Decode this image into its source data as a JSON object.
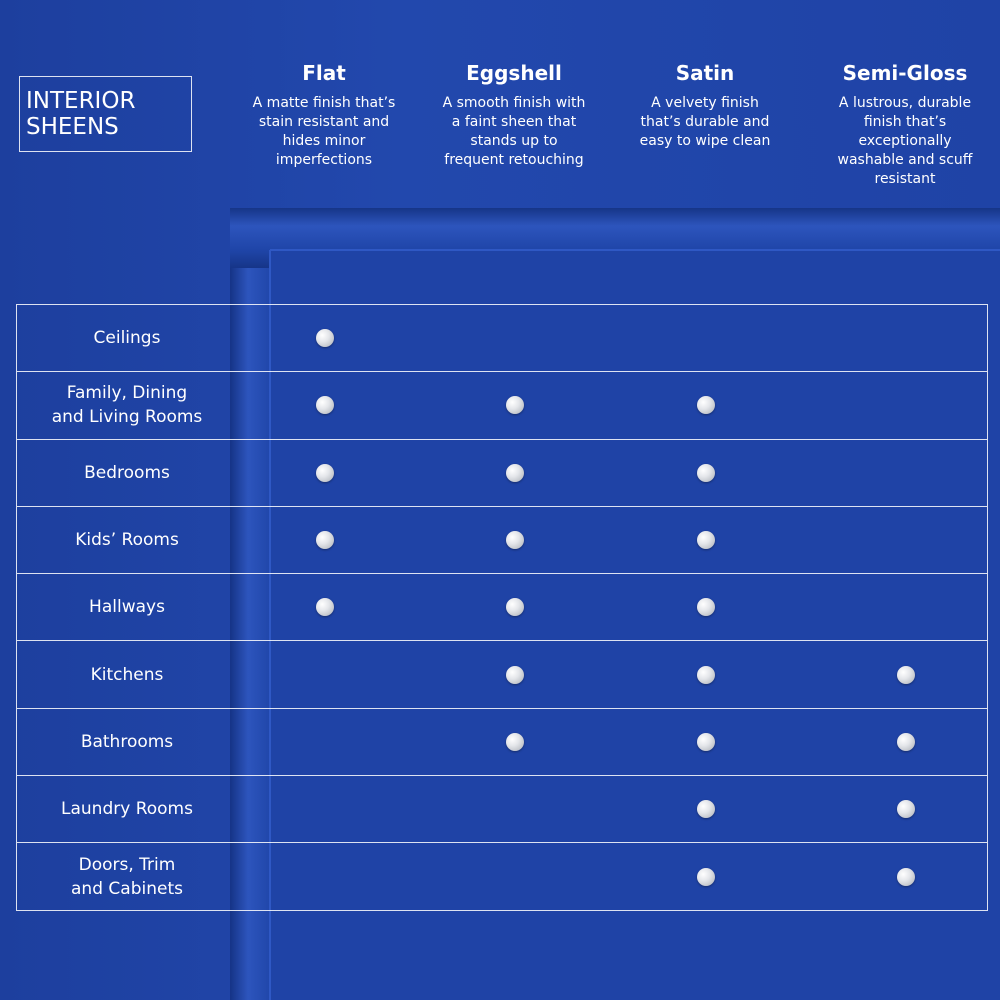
{
  "header": {
    "title": "INTERIOR\nSHEENS"
  },
  "columns": [
    {
      "name": "Flat",
      "description": "A matte finish that’s\nstain resistant and\nhides minor\nimperfections"
    },
    {
      "name": "Eggshell",
      "description": "A smooth finish with\na faint sheen that\nstands up to\nfrequent retouching"
    },
    {
      "name": "Satin",
      "description": "A velvety finish\nthat’s durable and\neasy to wipe clean"
    },
    {
      "name": "Semi-Gloss",
      "description": "A lustrous, durable\nfinish that’s\nexceptionally\nwashable and scuff\nresistant"
    }
  ],
  "rows": [
    {
      "label": "Ceilings",
      "marks": [
        true,
        false,
        false,
        false
      ]
    },
    {
      "label": "Family, Dining\nand Living Rooms",
      "marks": [
        true,
        true,
        true,
        false
      ]
    },
    {
      "label": "Bedrooms",
      "marks": [
        true,
        true,
        true,
        false
      ]
    },
    {
      "label": "Kids’ Rooms",
      "marks": [
        true,
        true,
        true,
        false
      ]
    },
    {
      "label": "Hallways",
      "marks": [
        true,
        true,
        true,
        false
      ]
    },
    {
      "label": "Kitchens",
      "marks": [
        false,
        true,
        true,
        true
      ]
    },
    {
      "label": "Bathrooms",
      "marks": [
        false,
        true,
        true,
        true
      ]
    },
    {
      "label": "Laundry Rooms",
      "marks": [
        false,
        false,
        true,
        true
      ]
    },
    {
      "label": "Doors, Trim\nand Cabinets",
      "marks": [
        false,
        false,
        true,
        true
      ]
    }
  ]
}
